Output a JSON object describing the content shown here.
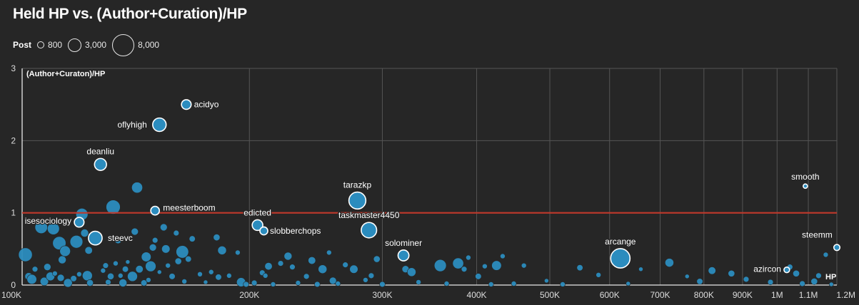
{
  "title": "Held HP vs. (Author+Curation)/HP",
  "legend": {
    "title": "Post",
    "sizes": [
      {
        "label": "800",
        "value": 800
      },
      {
        "label": "3,000",
        "value": 3000
      },
      {
        "label": "8,000",
        "value": 8000
      }
    ]
  },
  "colors": {
    "background": "#262626",
    "bubble": "#2b8cbe",
    "highlight_stroke": "#ffffff",
    "reference_line": "#c0392b",
    "grid": "#555555",
    "text": "#ffffff"
  },
  "chart_data": {
    "type": "scatter",
    "title": "Held HP vs. (Author+Curation)/HP",
    "xlabel": "HP",
    "ylabel": "(Author+Curaton)/HP",
    "x_scale": "log",
    "xlim": [
      100000,
      1200000
    ],
    "ylim": [
      0,
      3
    ],
    "x_ticks": [
      {
        "value": 100000,
        "label": "100K"
      },
      {
        "value": 200000,
        "label": "200K"
      },
      {
        "value": 300000,
        "label": "300K"
      },
      {
        "value": 400000,
        "label": "400K"
      },
      {
        "value": 500000,
        "label": "500K"
      },
      {
        "value": 600000,
        "label": "600K"
      },
      {
        "value": 700000,
        "label": "700K"
      },
      {
        "value": 800000,
        "label": "800K"
      },
      {
        "value": 900000,
        "label": "900K"
      },
      {
        "value": 1000000,
        "label": "1M"
      },
      {
        "value": 1100000,
        "label": "1.1M"
      },
      {
        "value": 1200000,
        "label": "1.2M"
      }
    ],
    "y_ticks": [
      {
        "value": 0,
        "label": "0"
      },
      {
        "value": 1,
        "label": "1"
      },
      {
        "value": 2,
        "label": "2"
      },
      {
        "value": 3,
        "label": "3"
      }
    ],
    "reference_line": 1,
    "grid": true,
    "labeled_points": [
      {
        "name": "acidyo",
        "x": 165000,
        "y": 2.5,
        "size": 1500
      },
      {
        "name": "oflyhigh",
        "x": 152000,
        "y": 2.22,
        "size": 2900
      },
      {
        "name": "deanliu",
        "x": 127000,
        "y": 1.67,
        "size": 2300
      },
      {
        "name": "tarazkp",
        "x": 278000,
        "y": 1.17,
        "size": 4600
      },
      {
        "name": "meesterboom",
        "x": 150000,
        "y": 1.03,
        "size": 1200
      },
      {
        "name": "edicted",
        "x": 205000,
        "y": 0.83,
        "size": 1800
      },
      {
        "name": "slobberchops",
        "x": 209000,
        "y": 0.75,
        "size": 1000
      },
      {
        "name": "taskmaster4450",
        "x": 288000,
        "y": 0.76,
        "size": 3800
      },
      {
        "name": "isesociology",
        "x": 119000,
        "y": 0.87,
        "size": 1500
      },
      {
        "name": "steevc",
        "x": 125000,
        "y": 0.65,
        "size": 3000
      },
      {
        "name": "solominer",
        "x": 320000,
        "y": 0.41,
        "size": 1900
      },
      {
        "name": "arcange",
        "x": 620000,
        "y": 0.37,
        "size": 6000
      },
      {
        "name": "smooth",
        "x": 1090000,
        "y": 1.37,
        "size": 300
      },
      {
        "name": "steemm",
        "x": 1200000,
        "y": 0.52,
        "size": 600
      },
      {
        "name": "azircon",
        "x": 1030000,
        "y": 0.21,
        "size": 500
      }
    ],
    "other_points": [
      [
        101000,
        0.42,
        3000
      ],
      [
        102000,
        0.12,
        900
      ],
      [
        103000,
        0.08,
        1500
      ],
      [
        104000,
        0.22,
        500
      ],
      [
        106000,
        0.8,
        2500
      ],
      [
        107000,
        0.05,
        1100
      ],
      [
        108000,
        0.25,
        800
      ],
      [
        109000,
        0.12,
        1200
      ],
      [
        110000,
        0.78,
        2300
      ],
      [
        110500,
        0.16,
        400
      ],
      [
        112000,
        0.58,
        2800
      ],
      [
        112500,
        0.1,
        800
      ],
      [
        113000,
        0.35,
        1000
      ],
      [
        114000,
        0.47,
        1800
      ],
      [
        115000,
        0.03,
        1200
      ],
      [
        117000,
        0.09,
        600
      ],
      [
        118000,
        0.6,
        2600
      ],
      [
        119000,
        0.15,
        400
      ],
      [
        120000,
        0.98,
        2300
      ],
      [
        121000,
        0.72,
        1000
      ],
      [
        122000,
        0.13,
        1600
      ],
      [
        122500,
        0.48,
        900
      ],
      [
        123000,
        0.03,
        700
      ],
      [
        128000,
        0.2,
        400
      ],
      [
        129000,
        0.27,
        500
      ],
      [
        130000,
        0.04,
        500
      ],
      [
        131000,
        0.12,
        700
      ],
      [
        132000,
        1.08,
        3200
      ],
      [
        133000,
        0.3,
        400
      ],
      [
        134000,
        0.62,
        700
      ],
      [
        135000,
        0.13,
        400
      ],
      [
        136000,
        0.03,
        1000
      ],
      [
        137000,
        0.22,
        600
      ],
      [
        138000,
        0.32,
        300
      ],
      [
        140000,
        0.12,
        1600
      ],
      [
        141000,
        0.74,
        800
      ],
      [
        142000,
        1.35,
        1900
      ],
      [
        143000,
        0.22,
        900
      ],
      [
        145000,
        0.03,
        600
      ],
      [
        146000,
        0.39,
        1500
      ],
      [
        147000,
        0.07,
        400
      ],
      [
        148000,
        0.26,
        1800
      ],
      [
        149000,
        0.52,
        800
      ],
      [
        150000,
        0.62,
        500
      ],
      [
        152000,
        0.18,
        300
      ],
      [
        154000,
        0.8,
        800
      ],
      [
        155000,
        0.5,
        1100
      ],
      [
        156000,
        0.27,
        400
      ],
      [
        158000,
        0.12,
        600
      ],
      [
        160000,
        0.72,
        500
      ],
      [
        161000,
        0.33,
        700
      ],
      [
        163000,
        0.46,
        2500
      ],
      [
        164000,
        0.05,
        400
      ],
      [
        166000,
        0.36,
        600
      ],
      [
        168000,
        0.64,
        600
      ],
      [
        172000,
        0.15,
        400
      ],
      [
        175000,
        0.04,
        300
      ],
      [
        178000,
        0.18,
        400
      ],
      [
        181000,
        0.66,
        700
      ],
      [
        182000,
        0.11,
        600
      ],
      [
        184000,
        0.48,
        1200
      ],
      [
        188000,
        0.13,
        400
      ],
      [
        193000,
        0.45,
        400
      ],
      [
        195000,
        0.04,
        1300
      ],
      [
        198000,
        0.01,
        500
      ],
      [
        203000,
        0.03,
        500
      ],
      [
        208000,
        0.17,
        500
      ],
      [
        210000,
        0.13,
        400
      ],
      [
        212000,
        0.26,
        900
      ],
      [
        215000,
        0.01,
        400
      ],
      [
        220000,
        0.3,
        500
      ],
      [
        225000,
        0.4,
        1000
      ],
      [
        228000,
        0.25,
        500
      ],
      [
        232000,
        0.03,
        400
      ],
      [
        238000,
        0.12,
        500
      ],
      [
        242000,
        0.34,
        900
      ],
      [
        246000,
        0.01,
        500
      ],
      [
        250000,
        0.22,
        1200
      ],
      [
        255000,
        0.45,
        400
      ],
      [
        258000,
        0.06,
        800
      ],
      [
        262000,
        0.02,
        400
      ],
      [
        268000,
        0.28,
        500
      ],
      [
        275000,
        0.22,
        1100
      ],
      [
        285000,
        0.07,
        400
      ],
      [
        290000,
        0.13,
        500
      ],
      [
        295000,
        0.36,
        700
      ],
      [
        300000,
        0.01,
        500
      ],
      [
        322000,
        0.22,
        800
      ],
      [
        328000,
        0.18,
        1200
      ],
      [
        335000,
        0.04,
        400
      ],
      [
        358000,
        0.27,
        2300
      ],
      [
        365000,
        0.02,
        400
      ],
      [
        378000,
        0.3,
        1900
      ],
      [
        385000,
        0.22,
        500
      ],
      [
        390000,
        0.38,
        400
      ],
      [
        402000,
        0.12,
        600
      ],
      [
        410000,
        0.26,
        400
      ],
      [
        418000,
        0.01,
        400
      ],
      [
        425000,
        0.27,
        1500
      ],
      [
        433000,
        0.4,
        400
      ],
      [
        448000,
        0.02,
        400
      ],
      [
        462000,
        0.27,
        400
      ],
      [
        495000,
        0.06,
        300
      ],
      [
        520000,
        0.01,
        400
      ],
      [
        548000,
        0.24,
        600
      ],
      [
        580000,
        0.14,
        400
      ],
      [
        635000,
        0.02,
        300
      ],
      [
        660000,
        0.22,
        300
      ],
      [
        720000,
        0.31,
        1200
      ],
      [
        760000,
        0.12,
        300
      ],
      [
        790000,
        0.05,
        600
      ],
      [
        820000,
        0.2,
        900
      ],
      [
        870000,
        0.16,
        700
      ],
      [
        910000,
        0.08,
        500
      ],
      [
        980000,
        0.04,
        500
      ],
      [
        1040000,
        0.25,
        500
      ],
      [
        1060000,
        0.16,
        700
      ],
      [
        1080000,
        0.02,
        500
      ],
      [
        1120000,
        0.05,
        700
      ],
      [
        1135000,
        0.13,
        500
      ],
      [
        1160000,
        0.42,
        400
      ],
      [
        1180000,
        0.01,
        300
      ]
    ]
  }
}
